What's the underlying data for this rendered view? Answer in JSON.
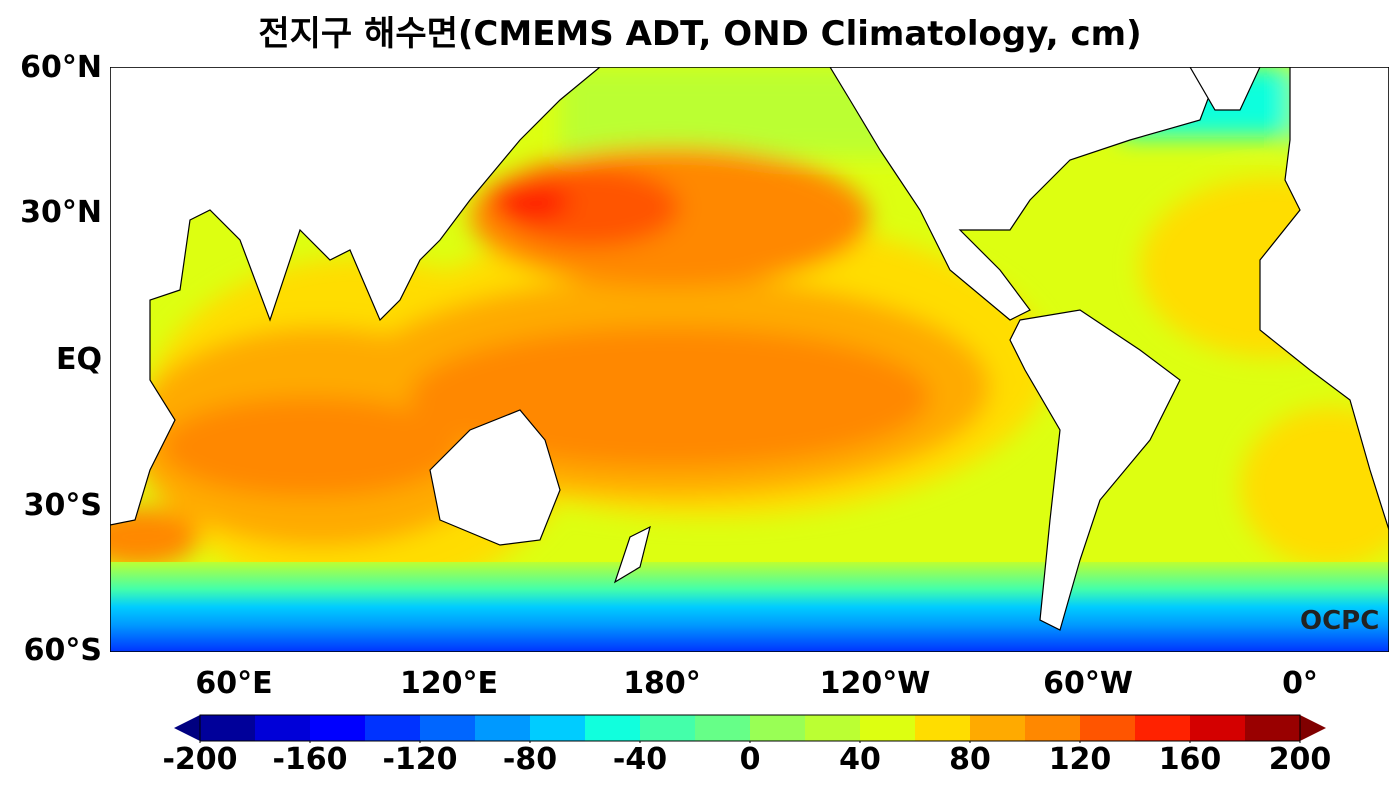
{
  "title": "전지구 해수면(CMEMS ADT, OND Climatology, cm)",
  "lat_labels": [
    "60°N",
    "30°N",
    "EQ",
    "30°S",
    "60°S"
  ],
  "lon_labels": [
    "60°E",
    "120°E",
    "180°",
    "120°W",
    "60°W",
    "0°"
  ],
  "watermark": "OCPC",
  "colorbar": {
    "min": -200,
    "max": 200,
    "step": 20,
    "extend": "both",
    "tick_labels": [
      "-200",
      "-160",
      "-120",
      "-80",
      "-40",
      "0",
      "40",
      "80",
      "120",
      "160",
      "200"
    ],
    "colors": [
      "#00009a",
      "#0000d8",
      "#0000ff",
      "#0033ff",
      "#0066ff",
      "#0099ff",
      "#00ccff",
      "#11ffdd",
      "#44ffaa",
      "#66ff88",
      "#99ff55",
      "#bbff33",
      "#ddff11",
      "#ffdd00",
      "#ffaa00",
      "#ff8800",
      "#ff5500",
      "#ff2200",
      "#d40000",
      "#990000"
    ],
    "under": "#000080",
    "over": "#800000"
  }
}
